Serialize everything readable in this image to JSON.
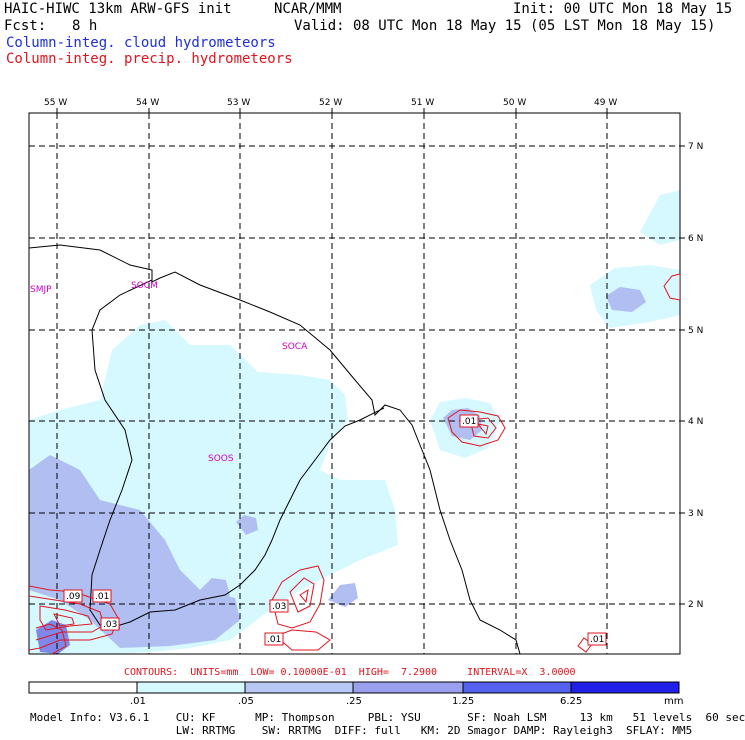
{
  "header": {
    "title": "HAIC-HIWC 13km ARW-GFS init",
    "org": "NCAR/MMM",
    "init": "Init: 00 UTC Mon 18 May 15",
    "fcst_label": "Fcst:",
    "fcst_value": "8 h",
    "valid": "Valid: 08 UTC Mon 18 May 15 (05 LST Mon 18 May 15)",
    "field1": "Column-integ. cloud hydrometeors",
    "field2": "Column-integ. precip. hydrometeors"
  },
  "map": {
    "lon_labels": [
      "55 W",
      "54 W",
      "53 W",
      "52 W",
      "51 W",
      "50 W",
      "49 W"
    ],
    "lat_labels": [
      "7 N",
      "6 N",
      "5 N",
      "4 N",
      "3 N",
      "2 N"
    ],
    "stations": [
      "SMJP",
      "SOCM",
      "SOCA",
      "SOOS"
    ],
    "contour_labels": [
      ".09",
      ".01",
      ".03",
      ".03",
      ".01",
      ".01",
      ".01"
    ]
  },
  "contours_line": {
    "text": "CONTOURS:  UNITS=mm  LOW= 0.10000E-01  HIGH=  7.2900     INTERVAL=X  3.0000"
  },
  "colorbar": {
    "ticks": [
      ".01",
      ".05",
      ".25",
      "1.25",
      "6.25"
    ],
    "unit": "mm",
    "colors": [
      "#ffffff",
      "#d6f8ff",
      "#b8c8f4",
      "#9ba0ee",
      "#5560ee",
      "#2020e8"
    ]
  },
  "model_info": {
    "line1": "Model Info: V3.6.1    CU: KF      MP: Thompson     PBL: YSU       SF: Noah LSM     13 km   51 levels  60 sec",
    "line2": "                      LW: RRTMG    SW: RRTMG  DIFF: full   KM: 2D Smagor DAMP: Rayleigh3  SFLAY: MM5"
  },
  "colors": {
    "cloud": "#1f2fd6",
    "precip": "#e0141e",
    "station": "#d000c8"
  }
}
